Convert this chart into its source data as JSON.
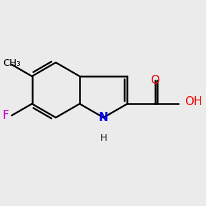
{
  "bg_color": "#ebebeb",
  "bond_color": "#000000",
  "N_color": "#0000ee",
  "O_color": "#ee0000",
  "F_color": "#cc00cc",
  "H_color": "#000000",
  "bond_width": 1.8,
  "font_size_atom": 12,
  "font_size_small": 10,
  "xlim": [
    -1.8,
    1.8
  ],
  "ylim": [
    -1.6,
    1.6
  ]
}
